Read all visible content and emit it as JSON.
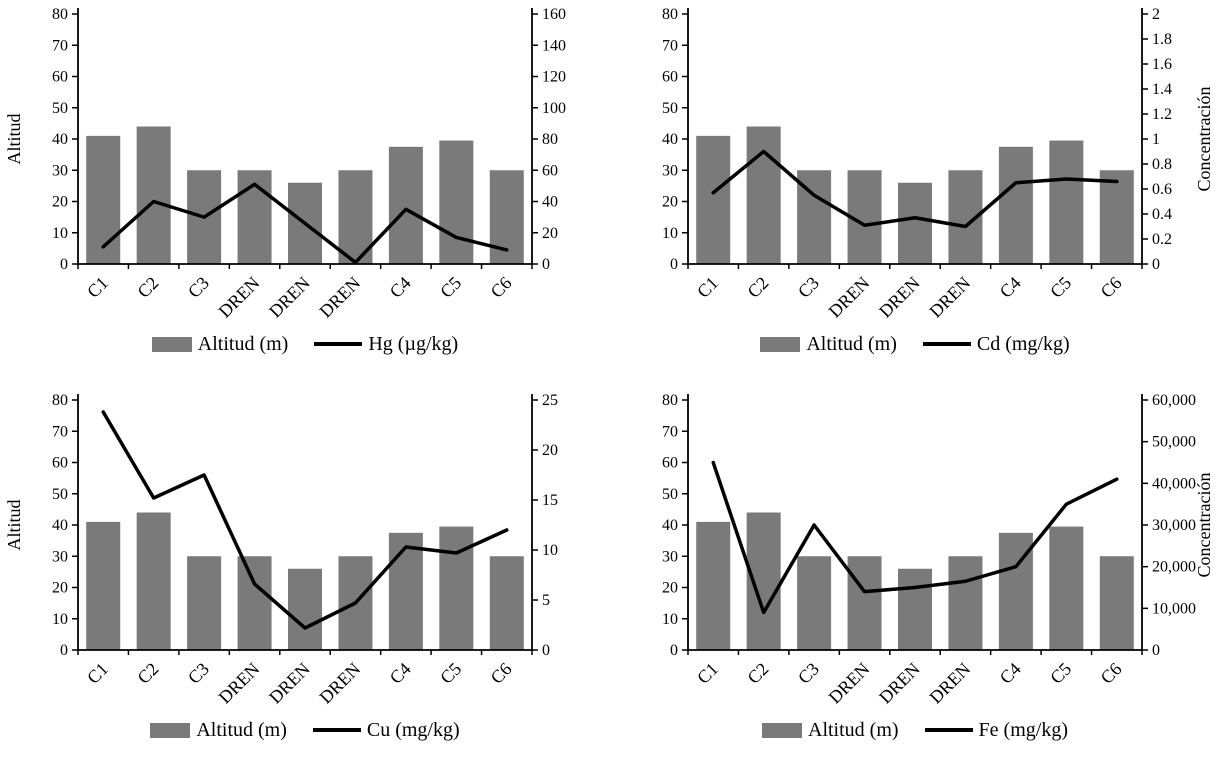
{
  "page": {
    "background": "#ffffff"
  },
  "colors": {
    "bar": "#7a7a7a",
    "line": "#000000",
    "axis": "#000000"
  },
  "chart_data": [
    {
      "type": "bar+line",
      "position": "top-left",
      "categories": [
        "C1",
        "C2",
        "C3",
        "DREN",
        "DREN",
        "DREN",
        "C4",
        "C5",
        "C6"
      ],
      "bars": {
        "name": "Altitud (m)",
        "axis": "left",
        "values": [
          41,
          44,
          30,
          30,
          26,
          30,
          37.5,
          39.5,
          30
        ]
      },
      "line": {
        "name": "Hg (µg/kg)",
        "axis": "right",
        "values": [
          11,
          40,
          30,
          51,
          26,
          1,
          35,
          17,
          9
        ]
      },
      "left_axis": {
        "label": "Altitud",
        "min": 0,
        "max": 80,
        "ticks": [
          "0",
          "10",
          "20",
          "30",
          "40",
          "50",
          "60",
          "70",
          "80"
        ]
      },
      "right_axis": {
        "label": "",
        "min": 0,
        "max": 160,
        "ticks": [
          "0",
          "20",
          "40",
          "60",
          "80",
          "100",
          "120",
          "140",
          "160"
        ]
      },
      "grid": false,
      "legend_position": "bottom"
    },
    {
      "type": "bar+line",
      "position": "top-right",
      "categories": [
        "C1",
        "C2",
        "C3",
        "DREN",
        "DREN",
        "DREN",
        "C4",
        "C5",
        "C6"
      ],
      "bars": {
        "name": "Altitud (m)",
        "axis": "left",
        "values": [
          41,
          44,
          30,
          30,
          26,
          30,
          37.5,
          39.5,
          30
        ]
      },
      "line": {
        "name": "Cd (mg/kg)",
        "axis": "right",
        "values": [
          0.57,
          0.9,
          0.55,
          0.31,
          0.37,
          0.3,
          0.65,
          0.68,
          0.66
        ]
      },
      "left_axis": {
        "label": "",
        "min": 0,
        "max": 80,
        "ticks": [
          "0",
          "10",
          "20",
          "30",
          "40",
          "50",
          "60",
          "70",
          "80"
        ]
      },
      "right_axis": {
        "label": "Concentración",
        "min": 0,
        "max": 2,
        "ticks": [
          "0",
          "0.2",
          "0.4",
          "0.6",
          "0.8",
          "1",
          "1.2",
          "1.4",
          "1.6",
          "1.8",
          "2"
        ]
      },
      "grid": false,
      "legend_position": "bottom"
    },
    {
      "type": "bar+line",
      "position": "bottom-left",
      "categories": [
        "C1",
        "C2",
        "C3",
        "DREN",
        "DREN",
        "DREN",
        "C4",
        "C5",
        "C6"
      ],
      "bars": {
        "name": "Altitud (m)",
        "axis": "left",
        "values": [
          41,
          44,
          30,
          30,
          26,
          30,
          37.5,
          39.5,
          30
        ]
      },
      "line": {
        "name": "Cu (mg/kg)",
        "axis": "right",
        "values": [
          23.8,
          15.2,
          17.5,
          6.6,
          2.2,
          4.7,
          10.3,
          9.7,
          12
        ]
      },
      "left_axis": {
        "label": "Altitud",
        "min": 0,
        "max": 80,
        "ticks": [
          "0",
          "10",
          "20",
          "30",
          "40",
          "50",
          "60",
          "70",
          "80"
        ]
      },
      "right_axis": {
        "label": "",
        "min": 0,
        "max": 25,
        "ticks": [
          "0",
          "5",
          "10",
          "15",
          "20",
          "25"
        ]
      },
      "grid": false,
      "legend_position": "bottom"
    },
    {
      "type": "bar+line",
      "position": "bottom-right",
      "categories": [
        "C1",
        "C2",
        "C3",
        "DREN",
        "DREN",
        "DREN",
        "C4",
        "C5",
        "C6"
      ],
      "bars": {
        "name": "Altitud (m)",
        "axis": "left",
        "values": [
          41,
          44,
          30,
          30,
          26,
          30,
          37.5,
          39.5,
          30
        ]
      },
      "line": {
        "name": "Fe (mg/kg)",
        "axis": "right",
        "values": [
          45000,
          9000,
          30000,
          14000,
          15000,
          16500,
          20000,
          35000,
          41000
        ]
      },
      "left_axis": {
        "label": "",
        "min": 0,
        "max": 80,
        "ticks": [
          "0",
          "10",
          "20",
          "30",
          "40",
          "50",
          "60",
          "70",
          "80"
        ]
      },
      "right_axis": {
        "label": "Concentración",
        "min": 0,
        "max": 60000,
        "ticks": [
          "0",
          "10,000",
          "20,000",
          "30,000",
          "40,000",
          "50,000",
          "60,000"
        ]
      },
      "grid": false,
      "legend_position": "bottom"
    }
  ]
}
